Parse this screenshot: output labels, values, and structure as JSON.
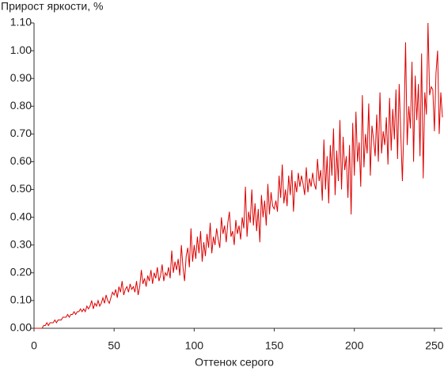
{
  "chart_data": {
    "type": "line",
    "y_label": "Прирост яркости, %",
    "x_label": "Оттенок серого",
    "xlim": [
      0,
      255
    ],
    "xticks": [
      0,
      50,
      100,
      150,
      200,
      250
    ],
    "ylim": [
      0,
      1.1
    ],
    "yticks": [
      {
        "value": 0,
        "label": "0.00"
      },
      {
        "value": 0.1,
        "label": "0.10"
      },
      {
        "value": 0.2,
        "label": "0.20"
      },
      {
        "value": 0.3,
        "label": "0.30"
      },
      {
        "value": 0.4,
        "label": "0.40"
      },
      {
        "value": 0.5,
        "label": "0.50"
      },
      {
        "value": 0.6,
        "label": "0.60"
      },
      {
        "value": 0.7,
        "label": "0.70"
      },
      {
        "value": 0.8,
        "label": "0.80"
      },
      {
        "value": 0.9,
        "label": "0.90"
      },
      {
        "value": 1,
        "label": "1.00"
      },
      {
        "value": 1.1,
        "label": "1.10"
      }
    ],
    "grid": false,
    "x": [
      0,
      1,
      2,
      3,
      4,
      5,
      6,
      7,
      8,
      9,
      10,
      11,
      12,
      13,
      14,
      15,
      16,
      17,
      18,
      19,
      20,
      21,
      22,
      23,
      24,
      25,
      26,
      27,
      28,
      29,
      30,
      31,
      32,
      33,
      34,
      35,
      36,
      37,
      38,
      39,
      40,
      41,
      42,
      43,
      44,
      45,
      46,
      47,
      48,
      49,
      50,
      51,
      52,
      53,
      54,
      55,
      56,
      57,
      58,
      59,
      60,
      61,
      62,
      63,
      64,
      65,
      66,
      67,
      68,
      69,
      70,
      71,
      72,
      73,
      74,
      75,
      76,
      77,
      78,
      79,
      80,
      81,
      82,
      83,
      84,
      85,
      86,
      87,
      88,
      89,
      90,
      91,
      92,
      93,
      94,
      95,
      96,
      97,
      98,
      99,
      100,
      101,
      102,
      103,
      104,
      105,
      106,
      107,
      108,
      109,
      110,
      111,
      112,
      113,
      114,
      115,
      116,
      117,
      118,
      119,
      120,
      121,
      122,
      123,
      124,
      125,
      126,
      127,
      128,
      129,
      130,
      131,
      132,
      133,
      134,
      135,
      136,
      137,
      138,
      139,
      140,
      141,
      142,
      143,
      144,
      145,
      146,
      147,
      148,
      149,
      150,
      151,
      152,
      153,
      154,
      155,
      156,
      157,
      158,
      159,
      160,
      161,
      162,
      163,
      164,
      165,
      166,
      167,
      168,
      169,
      170,
      171,
      172,
      173,
      174,
      175,
      176,
      177,
      178,
      179,
      180,
      181,
      182,
      183,
      184,
      185,
      186,
      187,
      188,
      189,
      190,
      191,
      192,
      193,
      194,
      195,
      196,
      197,
      198,
      199,
      200,
      201,
      202,
      203,
      204,
      205,
      206,
      207,
      208,
      209,
      210,
      211,
      212,
      213,
      214,
      215,
      216,
      217,
      218,
      219,
      220,
      221,
      222,
      223,
      224,
      225,
      226,
      227,
      228,
      229,
      230,
      231,
      232,
      233,
      234,
      235,
      236,
      237,
      238,
      239,
      240,
      241,
      242,
      243,
      244,
      245,
      246,
      247,
      248,
      249,
      250,
      251,
      252,
      253,
      254,
      255
    ],
    "series": [
      {
        "color": "#dd0000",
        "values": [
          0.0,
          0.0,
          0.0,
          0.0,
          0.0,
          0.0,
          0.01,
          0.01,
          0.02,
          0.01,
          0.02,
          0.02,
          0.02,
          0.03,
          0.02,
          0.03,
          0.03,
          0.03,
          0.04,
          0.04,
          0.04,
          0.05,
          0.04,
          0.05,
          0.05,
          0.06,
          0.05,
          0.06,
          0.06,
          0.07,
          0.06,
          0.07,
          0.06,
          0.08,
          0.07,
          0.08,
          0.1,
          0.07,
          0.09,
          0.08,
          0.1,
          0.08,
          0.09,
          0.11,
          0.09,
          0.12,
          0.1,
          0.09,
          0.11,
          0.13,
          0.12,
          0.14,
          0.11,
          0.15,
          0.13,
          0.17,
          0.12,
          0.14,
          0.15,
          0.13,
          0.16,
          0.14,
          0.15,
          0.13,
          0.17,
          0.12,
          0.15,
          0.21,
          0.16,
          0.18,
          0.15,
          0.19,
          0.17,
          0.21,
          0.16,
          0.2,
          0.18,
          0.22,
          0.17,
          0.19,
          0.23,
          0.17,
          0.2,
          0.19,
          0.22,
          0.18,
          0.28,
          0.2,
          0.24,
          0.21,
          0.25,
          0.19,
          0.3,
          0.22,
          0.17,
          0.26,
          0.29,
          0.22,
          0.36,
          0.24,
          0.3,
          0.25,
          0.33,
          0.27,
          0.35,
          0.24,
          0.31,
          0.26,
          0.34,
          0.29,
          0.38,
          0.27,
          0.33,
          0.3,
          0.36,
          0.32,
          0.29,
          0.4,
          0.34,
          0.37,
          0.31,
          0.38,
          0.42,
          0.33,
          0.35,
          0.3,
          0.39,
          0.34,
          0.37,
          0.32,
          0.4,
          0.36,
          0.51,
          0.33,
          0.42,
          0.38,
          0.5,
          0.37,
          0.45,
          0.35,
          0.43,
          0.31,
          0.48,
          0.4,
          0.46,
          0.37,
          0.52,
          0.41,
          0.49,
          0.44,
          0.43,
          0.46,
          0.42,
          0.55,
          0.47,
          0.59,
          0.45,
          0.5,
          0.44,
          0.55,
          0.48,
          0.57,
          0.42,
          0.53,
          0.49,
          0.56,
          0.51,
          0.55,
          0.52,
          0.48,
          0.58,
          0.49,
          0.54,
          0.51,
          0.56,
          0.52,
          0.5,
          0.61,
          0.53,
          0.57,
          0.46,
          0.68,
          0.5,
          0.62,
          0.45,
          0.66,
          0.55,
          0.72,
          0.48,
          0.64,
          0.53,
          0.75,
          0.5,
          0.69,
          0.57,
          0.62,
          0.47,
          0.66,
          0.41,
          0.74,
          0.55,
          0.78,
          0.6,
          0.67,
          0.51,
          0.84,
          0.58,
          0.7,
          0.63,
          0.81,
          0.55,
          0.73,
          0.68,
          0.62,
          0.77,
          0.6,
          0.85,
          0.63,
          0.71,
          0.66,
          0.76,
          0.59,
          0.83,
          0.64,
          0.79,
          0.68,
          0.86,
          0.61,
          0.88,
          0.7,
          0.53,
          0.74,
          1.03,
          0.66,
          0.8,
          0.72,
          0.96,
          0.6,
          0.91,
          0.75,
          0.88,
          0.62,
          0.99,
          0.54,
          0.85,
          0.77,
          1.1,
          0.84,
          0.87,
          0.86,
          0.71,
          0.92,
          1.0,
          0.7,
          0.85,
          0.76
        ]
      }
    ]
  }
}
